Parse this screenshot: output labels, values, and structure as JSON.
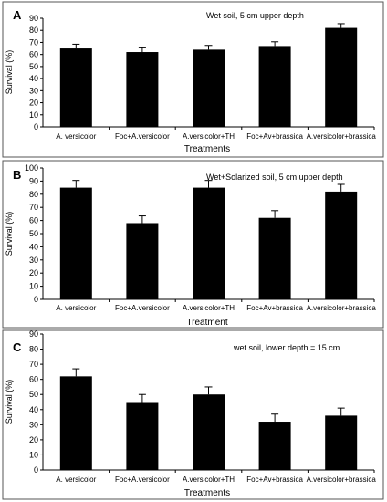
{
  "chart_data": [
    {
      "type": "bar",
      "panel_label": "A",
      "annotation": "Wet soil, 5 cm upper depth",
      "categories": [
        "A. versicolor",
        "Foc+A.versicolor",
        "A.versicolor+TH",
        "Foc+Av+brassica",
        "A.versicolor+brassica"
      ],
      "values": [
        65,
        62,
        64,
        67,
        82
      ],
      "errors": [
        3.5,
        3.5,
        3.5,
        3.5,
        3.5
      ],
      "xlabel": "Treatments",
      "ylabel": "Survival (%)",
      "ylim": [
        0,
        90
      ],
      "yticks": [
        0,
        10,
        20,
        30,
        40,
        50,
        60,
        70,
        80,
        90
      ],
      "grid": false,
      "bar_color": "#000000"
    },
    {
      "type": "bar",
      "panel_label": "B",
      "annotation": "Wet+Solarized soil, 5 cm upper depth",
      "categories": [
        "A. versicolor",
        "Foc+A.versicolor",
        "A.versicolor+TH",
        "Foc+Av+brassica",
        "A.versicolor+brassica"
      ],
      "values": [
        85,
        58,
        85,
        62,
        82
      ],
      "errors": [
        5.5,
        5.5,
        5.5,
        5.5,
        5.5
      ],
      "xlabel": "Treatment",
      "ylabel": "Survival (%)",
      "ylim": [
        0,
        100
      ],
      "yticks": [
        0,
        10,
        20,
        30,
        40,
        50,
        60,
        70,
        80,
        90,
        100
      ],
      "grid": false,
      "bar_color": "#000000"
    },
    {
      "type": "bar",
      "panel_label": "C",
      "annotation": "wet soil,  lower depth  = 15 cm",
      "categories": [
        "A. versicolor",
        "Foc+A.versicolor",
        "A.versicolor+TH",
        "Foc+Av+brassica",
        "A.versicolor+brassica"
      ],
      "values": [
        62,
        45,
        50,
        32,
        36
      ],
      "errors": [
        5,
        5,
        5,
        5,
        5
      ],
      "xlabel": "Treatments",
      "ylabel": "Survival (%)",
      "ylim": [
        0,
        90
      ],
      "yticks": [
        0,
        10,
        20,
        30,
        40,
        50,
        60,
        70,
        80,
        90
      ],
      "grid": false,
      "bar_color": "#000000"
    }
  ]
}
